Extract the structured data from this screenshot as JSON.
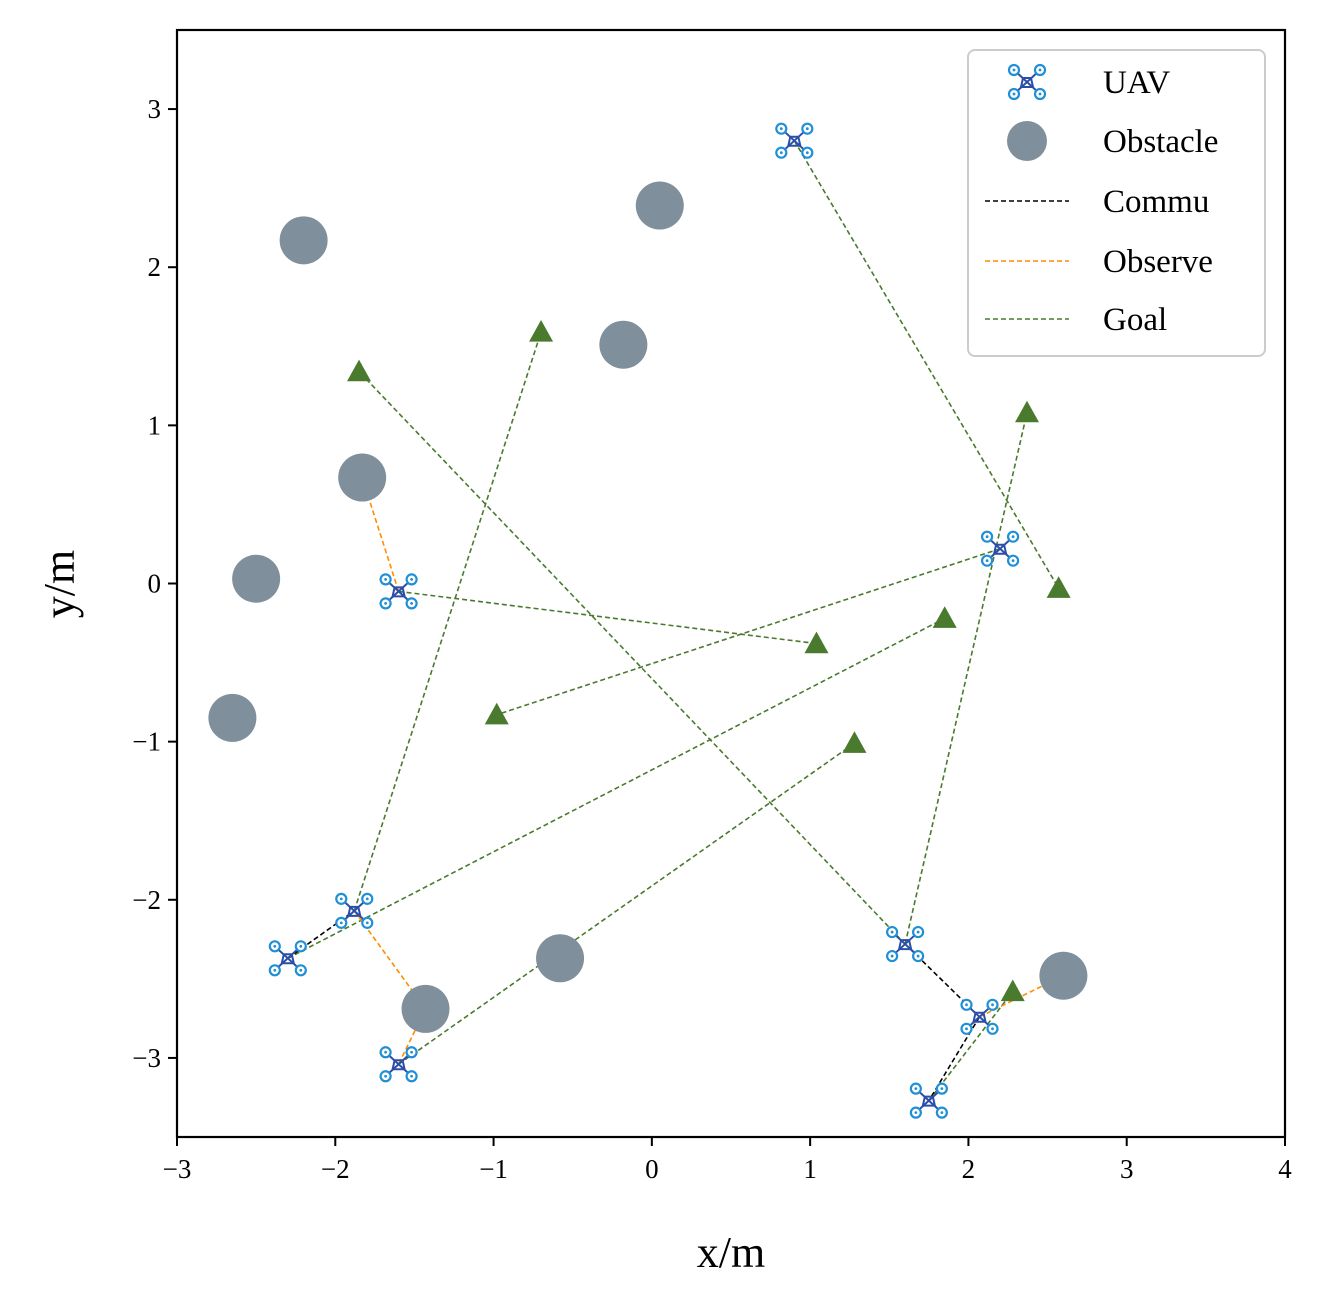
{
  "chart_data": {
    "type": "scatter",
    "title": "",
    "xlabel": "x/m",
    "ylabel": "y/m",
    "xlim": [
      -3,
      4
    ],
    "ylim": [
      -3.5,
      3.5
    ],
    "xticks": [
      -3,
      -2,
      -1,
      0,
      1,
      2,
      3,
      4
    ],
    "yticks": [
      -3,
      -2,
      -1,
      0,
      1,
      2,
      3
    ],
    "xtick_labels": [
      "−3",
      "−2",
      "−1",
      "0",
      "1",
      "2",
      "3",
      "4"
    ],
    "ytick_labels": [
      "−3",
      "−2",
      "−1",
      "0",
      "1",
      "2",
      "3"
    ],
    "grid": false,
    "legend": {
      "placement": "top-right",
      "entries": [
        "UAV",
        "Obstacle",
        "Commu",
        "Observe",
        "Goal"
      ]
    },
    "colors": {
      "uav": "#1f8fd6",
      "uav_body": "#2b4fa8",
      "obstacle": "#7f909c",
      "commu": "#000000",
      "observe": "#ff8c00",
      "goal": "#4a7a2e"
    },
    "uavs": [
      {
        "x": 0.9,
        "y": 2.8
      },
      {
        "x": 2.2,
        "y": 0.22
      },
      {
        "x": -1.6,
        "y": -0.05
      },
      {
        "x": -1.88,
        "y": -2.07
      },
      {
        "x": -2.3,
        "y": -2.37
      },
      {
        "x": -1.6,
        "y": -3.04
      },
      {
        "x": 1.6,
        "y": -2.28
      },
      {
        "x": 2.07,
        "y": -2.74
      },
      {
        "x": 1.75,
        "y": -3.27
      }
    ],
    "obstacles": [
      {
        "x": -2.2,
        "y": 2.17
      },
      {
        "x": 0.05,
        "y": 2.39
      },
      {
        "x": -0.18,
        "y": 1.51
      },
      {
        "x": -1.83,
        "y": 0.67
      },
      {
        "x": -2.5,
        "y": 0.03
      },
      {
        "x": -2.65,
        "y": -0.85
      },
      {
        "x": -0.58,
        "y": -2.37
      },
      {
        "x": -1.43,
        "y": -2.69
      },
      {
        "x": 2.6,
        "y": -2.48
      }
    ],
    "goals": [
      {
        "x": -1.85,
        "y": 1.34
      },
      {
        "x": -0.7,
        "y": 1.59
      },
      {
        "x": 2.37,
        "y": 1.08
      },
      {
        "x": 2.57,
        "y": -0.03
      },
      {
        "x": 1.85,
        "y": -0.22
      },
      {
        "x": 1.04,
        "y": -0.38
      },
      {
        "x": -0.98,
        "y": -0.83
      },
      {
        "x": 1.28,
        "y": -1.01
      },
      {
        "x": 2.28,
        "y": -2.58
      }
    ],
    "goal_lines": [
      {
        "from": [
          0.9,
          2.8
        ],
        "to": [
          2.57,
          -0.03
        ]
      },
      {
        "from": [
          2.2,
          0.22
        ],
        "to": [
          -0.98,
          -0.83
        ]
      },
      {
        "from": [
          -1.6,
          -0.05
        ],
        "to": [
          1.04,
          -0.38
        ]
      },
      {
        "from": [
          -1.88,
          -2.07
        ],
        "to": [
          -0.7,
          1.59
        ]
      },
      {
        "from": [
          -2.3,
          -2.37
        ],
        "to": [
          1.85,
          -0.22
        ]
      },
      {
        "from": [
          -1.6,
          -3.04
        ],
        "to": [
          1.28,
          -1.01
        ]
      },
      {
        "from": [
          1.6,
          -2.28
        ],
        "to": [
          -1.85,
          1.34
        ]
      },
      {
        "from": [
          1.6,
          -2.28
        ],
        "to": [
          2.37,
          1.08
        ]
      },
      {
        "from": [
          1.75,
          -3.27
        ],
        "to": [
          2.28,
          -2.58
        ]
      }
    ],
    "commu_lines": [
      {
        "from": [
          -2.3,
          -2.37
        ],
        "to": [
          -1.88,
          -2.07
        ]
      },
      {
        "from": [
          1.6,
          -2.28
        ],
        "to": [
          2.07,
          -2.74
        ]
      },
      {
        "from": [
          2.07,
          -2.74
        ],
        "to": [
          1.75,
          -3.27
        ]
      }
    ],
    "observe_lines": [
      {
        "from": [
          -1.6,
          -0.05
        ],
        "to": [
          -1.83,
          0.67
        ]
      },
      {
        "from": [
          -1.88,
          -2.07
        ],
        "to": [
          -1.43,
          -2.69
        ]
      },
      {
        "from": [
          -1.43,
          -2.69
        ],
        "to": [
          -1.6,
          -3.04
        ]
      },
      {
        "from": [
          2.07,
          -2.74
        ],
        "to": [
          2.6,
          -2.48
        ]
      }
    ]
  }
}
